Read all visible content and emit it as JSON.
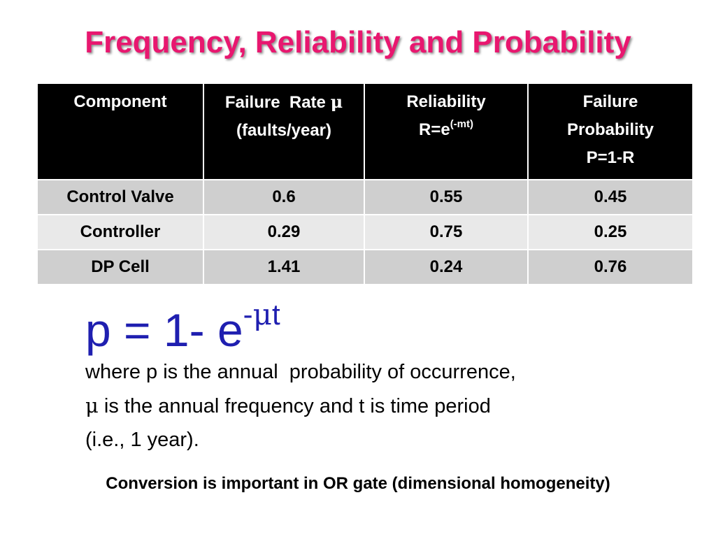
{
  "title": "Frequency, Reliability and Probability",
  "table": {
    "headers": {
      "component": "Component",
      "failure_rate": {
        "line1_prefix": "Failure  Rate ",
        "mu": "μ",
        "line2": "(faults/year)"
      },
      "reliability": {
        "line1": "Reliability",
        "line2_base": "R=e",
        "line2_sup": "(-mt)"
      },
      "failure_probability": {
        "line1": "Failure",
        "line2": "Probability",
        "line3": "P=1-R"
      }
    },
    "rows": [
      {
        "component": "Control Valve",
        "failure_rate": "0.6",
        "reliability": "0.55",
        "failure_probability": "0.45"
      },
      {
        "component": "Controller",
        "failure_rate": "0.29",
        "reliability": "0.75",
        "failure_probability": "0.25"
      },
      {
        "component": "DP Cell",
        "failure_rate": "1.41",
        "reliability": "0.24",
        "failure_probability": "0.76"
      }
    ]
  },
  "formula": {
    "base": "p = 1- e",
    "sup_minus": "-",
    "sup_mu": "μ",
    "sup_t": "t"
  },
  "description": {
    "line1": "where p is the annual  probability of occurrence,",
    "line2_mu": "μ",
    "line2_rest": " is the annual frequency and t is time period",
    "line3": "(i.e., 1 year)."
  },
  "footer": "Conversion is important in OR gate (dimensional homogeneity)",
  "colors": {
    "title": "#e8176f",
    "formula": "#1f1fb0",
    "header_bg": "#000000",
    "row_dark": "#cfcfcf",
    "row_light": "#e9e9e9"
  }
}
